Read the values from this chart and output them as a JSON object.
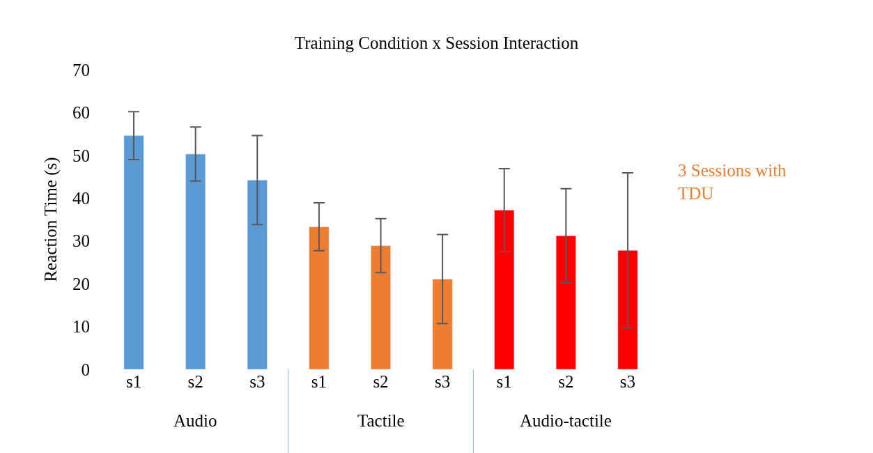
{
  "chart_data": {
    "type": "bar",
    "title": "Training Condition x Session Interaction",
    "ylabel": "Reaction Time (s)",
    "categories": [
      "s1",
      "s2",
      "s3",
      "s1",
      "s2",
      "s3",
      "s1",
      "s2",
      "s3"
    ],
    "series": [
      {
        "color": "#5b9bd5",
        "values": [
          54.6,
          50.3,
          44.2,
          null,
          null,
          null,
          null,
          null,
          null
        ],
        "errors": [
          5.6,
          6.3,
          10.4,
          null,
          null,
          null,
          null,
          null,
          null
        ]
      },
      {
        "name": "3 Sessions with TDU",
        "color": "#ed7d31",
        "values": [
          null,
          null,
          null,
          33.3,
          28.9,
          21.1,
          null,
          null,
          null
        ],
        "errors": [
          null,
          null,
          null,
          5.6,
          6.3,
          10.4,
          null,
          null,
          null
        ]
      },
      {
        "color": "#ff0000",
        "values": [
          null,
          null,
          null,
          null,
          null,
          null,
          37.2,
          31.2,
          27.8
        ],
        "errors": [
          null,
          null,
          null,
          null,
          null,
          null,
          9.7,
          11.0,
          18.1
        ]
      }
    ],
    "annotations": [
      "Audio",
      "Tactile",
      "Audio-tactile"
    ],
    "ylim": [
      0,
      70
    ],
    "yticks": [
      0,
      10,
      20,
      30,
      40,
      50,
      60,
      70
    ],
    "legend": "right"
  }
}
